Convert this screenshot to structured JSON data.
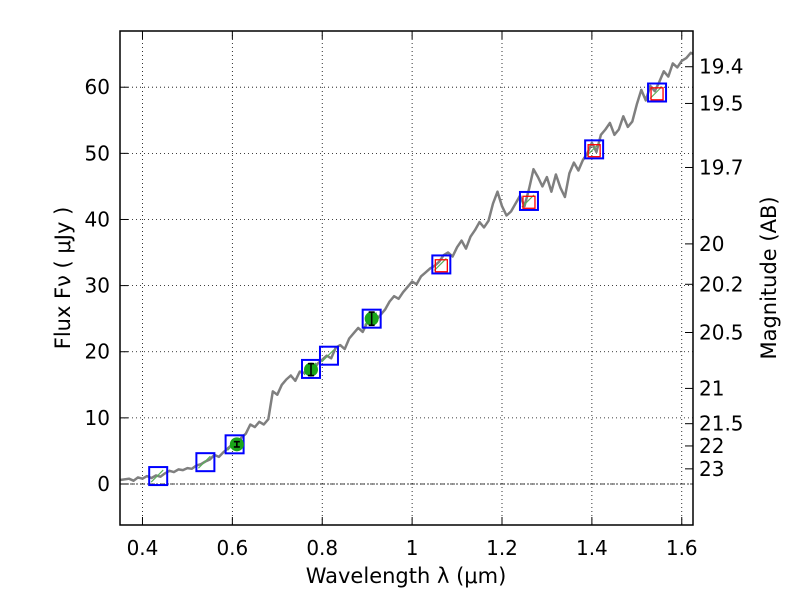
{
  "chart_data": {
    "type": "scatter",
    "xlabel": "Wavelength  λ (μm)",
    "ylabel": "Flux  Fν  ( μJy )",
    "ylabel2": "Magnitude (AB)",
    "xlim": [
      0.35,
      1.625
    ],
    "ylim": [
      -6.2,
      68.5
    ],
    "grid": true,
    "x_ticks": [
      {
        "value": 0.4,
        "label": "0.4"
      },
      {
        "value": 0.6,
        "label": "0.6"
      },
      {
        "value": 0.8,
        "label": "0.8"
      },
      {
        "value": 1.0,
        "label": "1"
      },
      {
        "value": 1.2,
        "label": "1.2"
      },
      {
        "value": 1.4,
        "label": "1.4"
      },
      {
        "value": 1.6,
        "label": "1.6"
      }
    ],
    "y_ticks": [
      {
        "value": 0,
        "label": "0"
      },
      {
        "value": 10,
        "label": "10"
      },
      {
        "value": 20,
        "label": "20"
      },
      {
        "value": 30,
        "label": "30"
      },
      {
        "value": 40,
        "label": "40"
      },
      {
        "value": 50,
        "label": "50"
      },
      {
        "value": 60,
        "label": "60"
      }
    ],
    "mag_ticks": [
      {
        "mag": 19.4,
        "label": "19.4"
      },
      {
        "mag": 19.5,
        "label": "19.5"
      },
      {
        "mag": 19.7,
        "label": "19.7"
      },
      {
        "mag": 20,
        "label": "20"
      },
      {
        "mag": 20.2,
        "label": "20.2"
      },
      {
        "mag": 20.5,
        "label": "20.5"
      },
      {
        "mag": 21,
        "label": "21"
      },
      {
        "mag": 21.5,
        "label": "21.5"
      },
      {
        "mag": 22,
        "label": "22"
      },
      {
        "mag": 23,
        "label": "23"
      }
    ],
    "zero_line": 0,
    "series": [
      {
        "name": "model-spectrum",
        "type": "line",
        "color": "#7f7f7f",
        "x": [
          0.35,
          0.37,
          0.38,
          0.39,
          0.4,
          0.41,
          0.42,
          0.43,
          0.44,
          0.45,
          0.46,
          0.47,
          0.48,
          0.49,
          0.5,
          0.51,
          0.52,
          0.53,
          0.54,
          0.55,
          0.56,
          0.57,
          0.58,
          0.59,
          0.6,
          0.61,
          0.62,
          0.63,
          0.64,
          0.65,
          0.66,
          0.67,
          0.68,
          0.69,
          0.7,
          0.71,
          0.72,
          0.73,
          0.74,
          0.75,
          0.76,
          0.77,
          0.78,
          0.79,
          0.8,
          0.81,
          0.82,
          0.83,
          0.84,
          0.85,
          0.86,
          0.87,
          0.88,
          0.89,
          0.9,
          0.91,
          0.92,
          0.93,
          0.94,
          0.95,
          0.96,
          0.97,
          0.98,
          0.99,
          1.0,
          1.01,
          1.02,
          1.03,
          1.04,
          1.05,
          1.06,
          1.07,
          1.08,
          1.09,
          1.1,
          1.11,
          1.12,
          1.13,
          1.14,
          1.15,
          1.16,
          1.17,
          1.18,
          1.19,
          1.2,
          1.21,
          1.22,
          1.23,
          1.24,
          1.25,
          1.26,
          1.27,
          1.28,
          1.29,
          1.3,
          1.31,
          1.32,
          1.33,
          1.34,
          1.35,
          1.36,
          1.37,
          1.38,
          1.39,
          1.4,
          1.41,
          1.42,
          1.43,
          1.44,
          1.45,
          1.46,
          1.47,
          1.48,
          1.49,
          1.5,
          1.51,
          1.52,
          1.53,
          1.54,
          1.55,
          1.56,
          1.57,
          1.58,
          1.59,
          1.6,
          1.61,
          1.62,
          1.625
        ],
        "y": [
          0.6,
          0.8,
          0.5,
          1.0,
          0.8,
          1.2,
          0.9,
          1.3,
          1.1,
          1.6,
          2.0,
          1.8,
          2.2,
          2.1,
          2.4,
          2.3,
          2.8,
          3.0,
          3.4,
          3.7,
          4.4,
          4.1,
          4.8,
          5.4,
          6.0,
          5.6,
          7.0,
          7.6,
          9.0,
          8.6,
          9.4,
          9.0,
          9.8,
          14.0,
          13.5,
          15.0,
          15.8,
          16.4,
          15.6,
          17.0,
          16.8,
          17.6,
          17.2,
          18.2,
          18.8,
          19.4,
          19.0,
          20.6,
          21.0,
          20.4,
          22.0,
          22.8,
          23.6,
          23.0,
          24.4,
          25.2,
          24.8,
          25.6,
          26.4,
          27.6,
          28.4,
          28.0,
          29.0,
          29.8,
          30.6,
          30.2,
          31.4,
          32.0,
          32.6,
          33.0,
          33.6,
          34.6,
          35.0,
          34.4,
          35.8,
          36.8,
          35.6,
          37.4,
          38.4,
          39.6,
          38.8,
          39.8,
          42.4,
          44.2,
          42.0,
          40.6,
          41.2,
          42.4,
          43.6,
          42.0,
          44.6,
          47.6,
          46.4,
          45.0,
          46.4,
          44.2,
          46.8,
          44.8,
          43.4,
          47.0,
          48.6,
          47.4,
          49.0,
          50.0,
          51.6,
          50.2,
          52.8,
          53.6,
          54.6,
          52.8,
          53.6,
          55.6,
          54.0,
          54.8,
          57.4,
          59.6,
          58.0,
          60.2,
          59.4,
          60.8,
          62.4,
          61.6,
          63.6,
          63.0,
          64.0,
          64.4,
          65.2,
          65.0
        ]
      },
      {
        "name": "model-bandpass-fluxes",
        "type": "square-marker",
        "color": "#0000ff",
        "x": [
          0.435,
          0.54,
          0.605,
          0.775,
          0.815,
          0.91,
          1.065,
          1.26,
          1.405,
          1.545
        ],
        "y": [
          1.2,
          3.3,
          6.0,
          17.4,
          19.4,
          25.0,
          33.2,
          42.8,
          50.6,
          59.2
        ]
      },
      {
        "name": "observed-fluxes",
        "type": "circle-errorbar",
        "color": "#1aa51a",
        "x": [
          0.61,
          0.775,
          0.91
        ],
        "y": [
          6.0,
          17.3,
          25.0
        ],
        "yerr": [
          0.4,
          0.9,
          1.0
        ]
      },
      {
        "name": "upper-limits",
        "type": "square-marker-small",
        "color": "#ff0000",
        "x": [
          1.065,
          1.26,
          1.405,
          1.545
        ],
        "y": [
          33.0,
          42.6,
          50.4,
          59.0
        ]
      }
    ]
  }
}
